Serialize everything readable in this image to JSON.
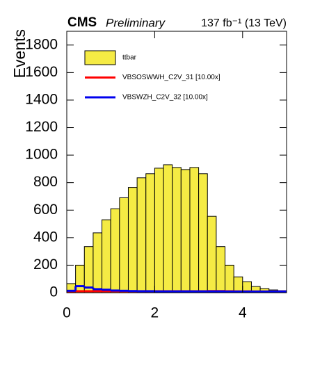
{
  "chart_data": {
    "type": "histogram",
    "experiment": "CMS",
    "status": "Preliminary",
    "lumi": "137 fb⁻¹ (13 TeV)",
    "y_label": "Events",
    "bins": [
      0,
      0.2,
      0.4,
      0.6,
      0.8,
      1.0,
      1.2,
      1.4,
      1.6,
      1.8,
      2.0,
      2.2,
      2.4,
      2.6,
      2.8,
      3.0,
      3.2,
      3.4,
      3.6,
      3.8,
      4.0,
      4.2,
      4.4,
      4.6,
      4.8,
      5.0
    ],
    "series": [
      {
        "name": "ttbar",
        "color": "#f5eb44",
        "style": "filled",
        "values": [
          66,
          200,
          335,
          435,
          530,
          610,
          690,
          765,
          835,
          865,
          905,
          930,
          910,
          895,
          910,
          865,
          555,
          335,
          200,
          115,
          80,
          45,
          30,
          20,
          15
        ]
      },
      {
        "name": "VBSOSWWH_C2V_31 [10.00x]",
        "color": "#ff0000",
        "style": "line",
        "values": [
          2,
          3,
          3,
          3,
          3,
          3,
          3,
          3,
          3,
          3,
          3,
          3,
          3,
          3,
          3,
          3,
          4,
          4,
          3,
          2,
          2,
          1,
          1,
          1,
          1
        ]
      },
      {
        "name": "VBSWZH_C2V_32 [10.00x]",
        "color": "#0000ee",
        "style": "line",
        "values": [
          6,
          40,
          30,
          18,
          14,
          8,
          6,
          4,
          3,
          3,
          2,
          2,
          2,
          2,
          2,
          2,
          2,
          2,
          1,
          1,
          1,
          1,
          1,
          1,
          1
        ]
      }
    ],
    "xlim": [
      0,
      5
    ],
    "xticks": [
      0,
      2,
      4
    ],
    "ylim": [
      0,
      1900
    ],
    "yticks": [
      0,
      200,
      400,
      600,
      800,
      1000,
      1200,
      1400,
      1600,
      1800
    ]
  }
}
